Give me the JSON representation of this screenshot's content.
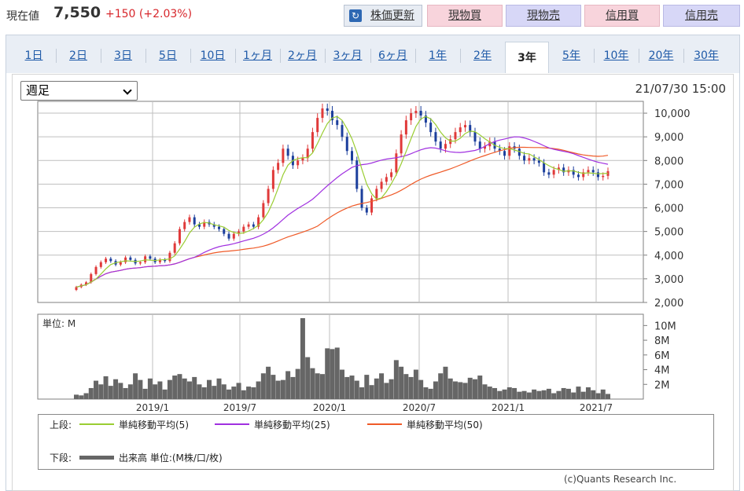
{
  "header": {
    "price_label": "現在値",
    "price_value": "7,550",
    "price_change": "+150 (+2.03%)",
    "refresh_label": "株価更新",
    "buy_label": "現物買",
    "sell_label": "現物売",
    "margin_buy_label": "信用買",
    "margin_sell_label": "信用売"
  },
  "tabs": [
    "1日",
    "2日",
    "3日",
    "5日",
    "10日",
    "1ヶ月",
    "2ヶ月",
    "3ヶ月",
    "6ヶ月",
    "1年",
    "2年",
    "3年",
    "5年",
    "10年",
    "20年",
    "30年"
  ],
  "active_tab": "3年",
  "chart_controls": {
    "interval": "週足",
    "timestamp": "21/07/30 15:00"
  },
  "colors": {
    "up": "#e03a3a",
    "down": "#1c3f9c",
    "ma5": "#9acd32",
    "ma25": "#a030e0",
    "ma50": "#ef5a28",
    "volume": "#666666",
    "grid": "#bfbfbf"
  },
  "chart_data": {
    "type": "candlestick",
    "price_axis": {
      "ticks": [
        "10,000",
        "9,000",
        "8,000",
        "7,000",
        "6,000",
        "5,000",
        "4,000",
        "3,000",
        "2,000"
      ],
      "ylim": [
        2000,
        10500
      ]
    },
    "x_axis": {
      "tick_labels": [
        "2019/1",
        "2019/7",
        "2020/1",
        "2020/7",
        "2021/1",
        "2021/7"
      ]
    },
    "close": [
      2650,
      2750,
      2850,
      3200,
      3500,
      3700,
      3850,
      3750,
      3600,
      3700,
      3900,
      3800,
      3650,
      3700,
      3950,
      3850,
      3700,
      3800,
      3750,
      4100,
      4500,
      5100,
      5400,
      5600,
      5300,
      5200,
      5400,
      5300,
      5200,
      5100,
      4900,
      4700,
      4900,
      5000,
      5200,
      5300,
      5200,
      5600,
      6200,
      6800,
      7600,
      7900,
      8500,
      8200,
      7800,
      8000,
      8100,
      8500,
      9200,
      9800,
      10200,
      10100,
      9700,
      9500,
      9000,
      8400,
      8000,
      6800,
      6000,
      5800,
      6400,
      6800,
      7100,
      7300,
      7500,
      8300,
      9100,
      9700,
      10000,
      10100,
      9900,
      9600,
      9200,
      8800,
      8500,
      8700,
      8900,
      9200,
      9400,
      9500,
      9200,
      8800,
      8500,
      8600,
      8800,
      8500,
      8400,
      8200,
      8600,
      8500,
      8200,
      8000,
      8100,
      8000,
      7900,
      7500,
      7400,
      7600,
      7700,
      7500,
      7600,
      7400,
      7300,
      7500,
      7600,
      7500,
      7300,
      7350,
      7550
    ],
    "ma_legend": {
      "upper_label": "上段:",
      "ma5": "単純移動平均(5)",
      "ma25": "単純移動平均(25)",
      "ma50": "単純移動平均(50)"
    },
    "volume": {
      "unit_label": "単位: M",
      "ticks": [
        "10M",
        "8M",
        "6M",
        "4M",
        "2M"
      ],
      "ylim": [
        0,
        11
      ],
      "values": [
        0.6,
        0.5,
        0.8,
        1.5,
        2.5,
        2.0,
        3.1,
        1.8,
        2.7,
        2.2,
        1.5,
        2.0,
        3.5,
        2.6,
        1.4,
        2.8,
        2.0,
        2.4,
        1.3,
        2.6,
        3.2,
        3.4,
        2.8,
        2.4,
        3.0,
        2.0,
        1.6,
        2.6,
        1.8,
        2.8,
        2.0,
        1.3,
        1.7,
        2.2,
        1.2,
        1.7,
        1.6,
        2.4,
        3.5,
        4.4,
        3.3,
        2.5,
        2.6,
        3.8,
        3.0,
        4.1,
        11.0,
        5.7,
        4.2,
        3.5,
        3.4,
        6.9,
        6.8,
        7.0,
        4.0,
        3.0,
        3.2,
        2.5,
        1.6,
        3.3,
        1.9,
        2.8,
        3.5,
        2.2,
        2.7,
        5.3,
        4.4,
        3.4,
        3.0,
        4.0,
        2.6,
        1.6,
        1.4,
        2.4,
        3.5,
        4.4,
        2.8,
        2.4,
        2.3,
        2.2,
        2.9,
        2.7,
        3.2,
        2.0,
        1.7,
        1.5,
        1.1,
        1.3,
        1.6,
        1.5,
        1.0,
        1.1,
        0.9,
        1.3,
        1.1,
        1.2,
        1.4,
        0.8,
        1.1,
        1.5,
        1.4,
        0.9,
        1.7,
        1.0,
        1.6,
        1.2,
        0.8,
        1.3,
        0.7
      ]
    },
    "volume_legend": {
      "lower_label": "下段:",
      "text": "出来高 単位:(M株/口/枚)"
    }
  },
  "credit": "(c)Quants Research Inc."
}
